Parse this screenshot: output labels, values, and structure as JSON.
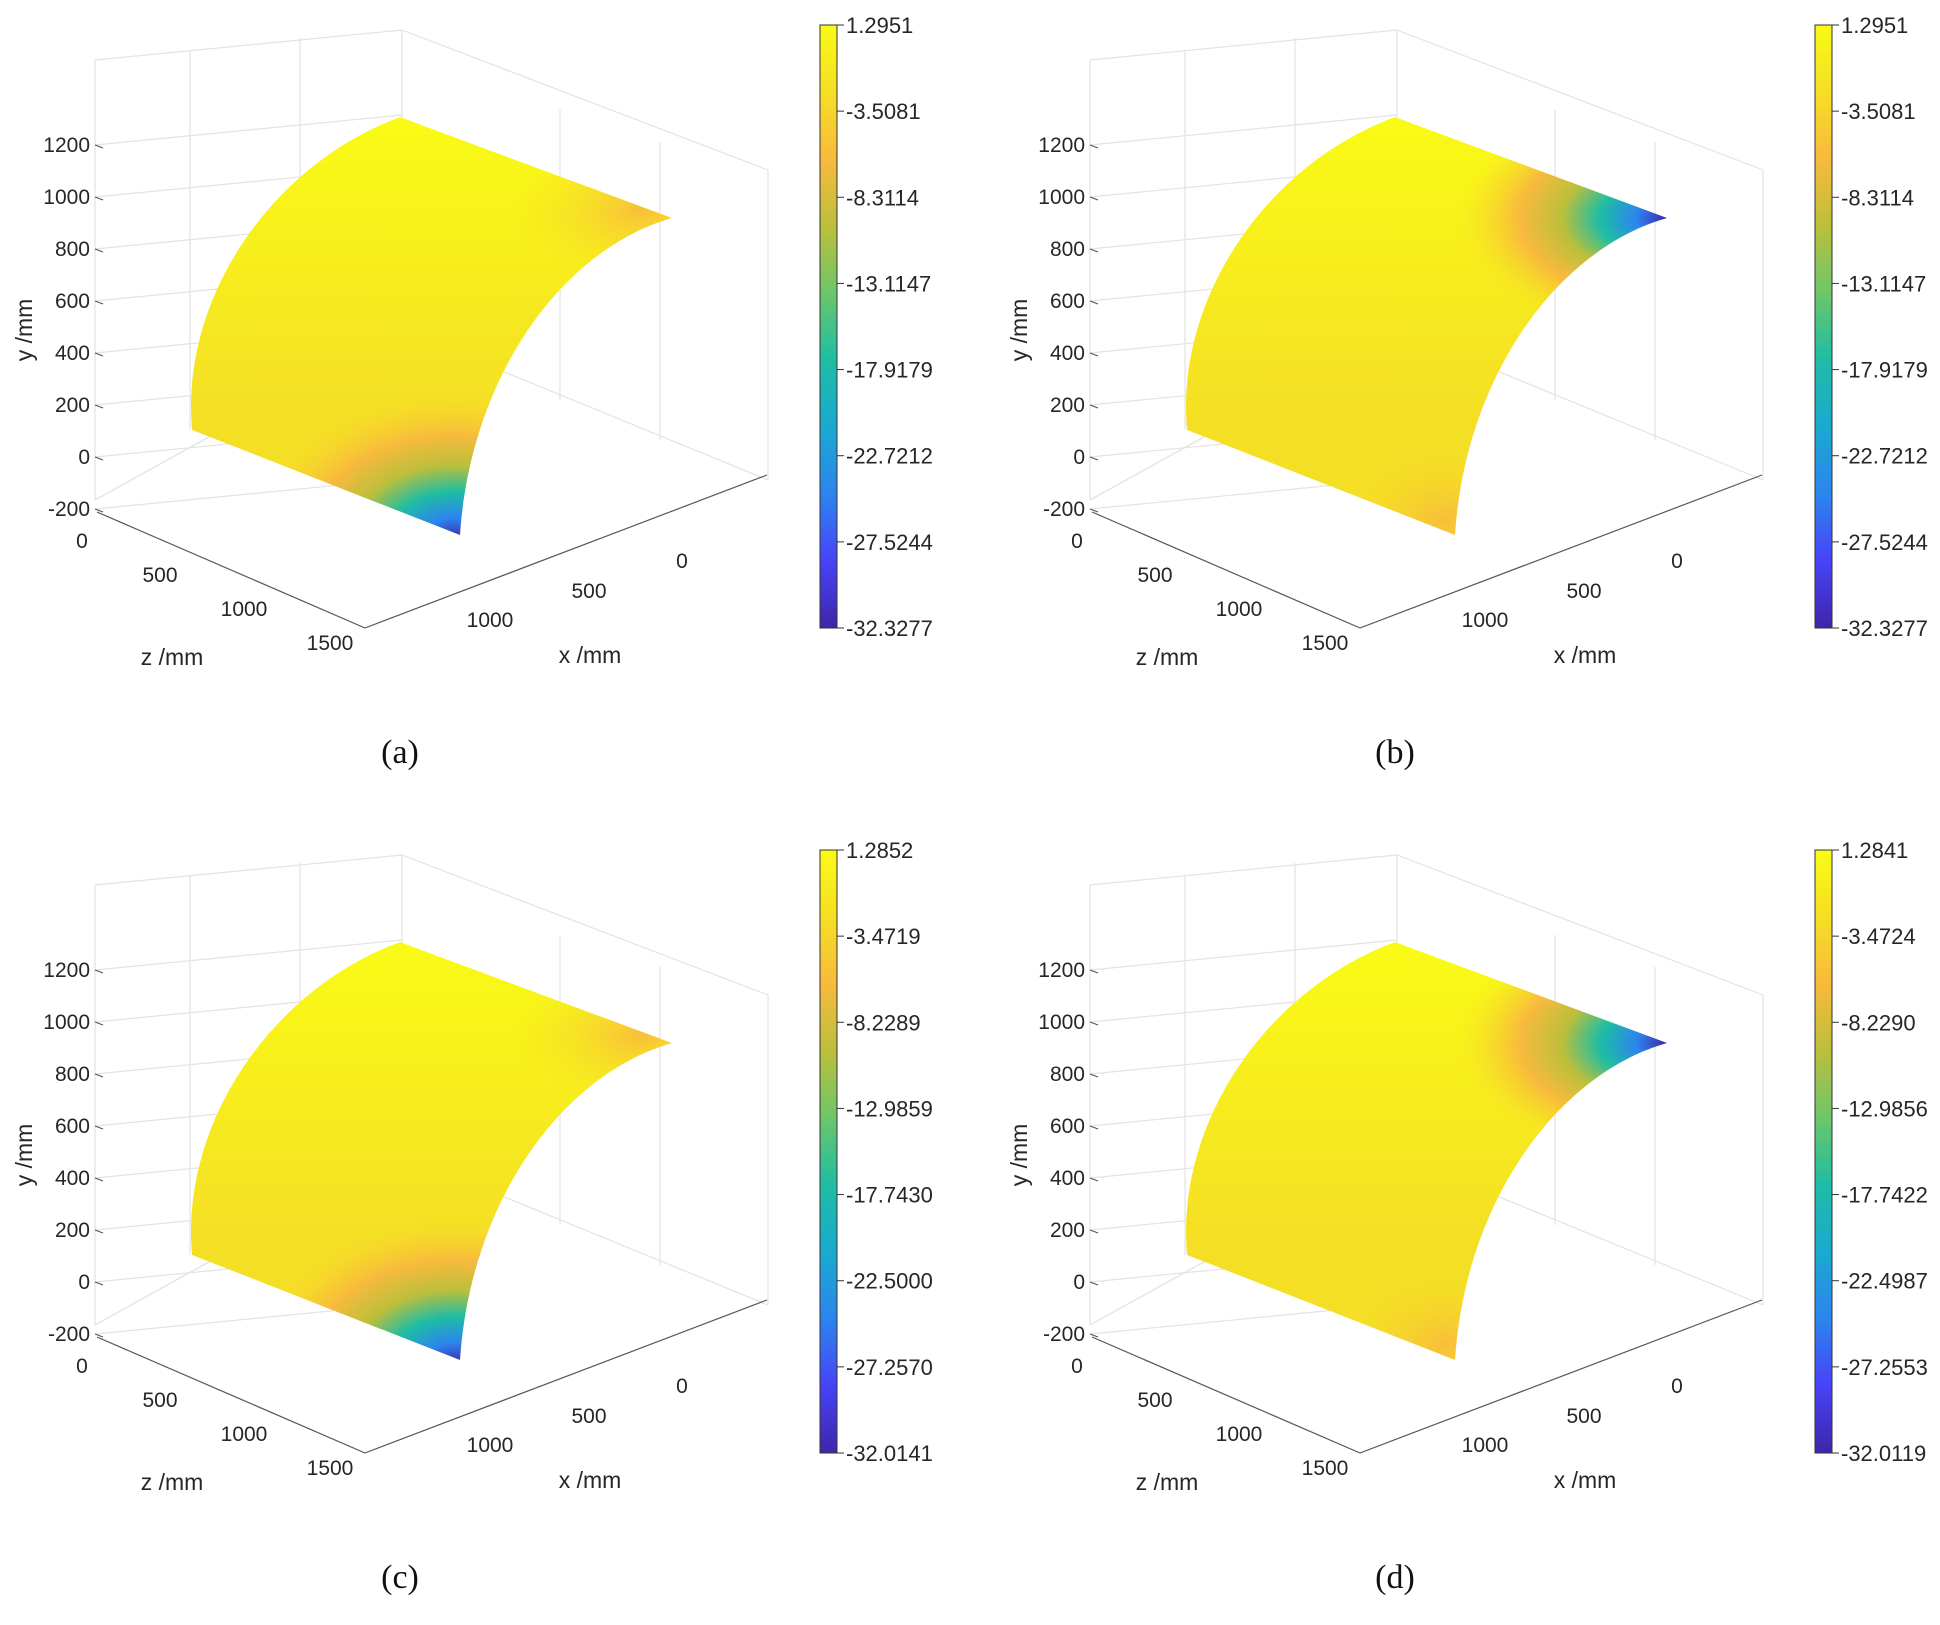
{
  "colormap": [
    "#3e26a8",
    "#4743f8",
    "#2c85ee",
    "#1aa9d0",
    "#1ebda4",
    "#6cc66a",
    "#bcbf3b",
    "#f8ba3d",
    "#f5df25",
    "#f9fb15"
  ],
  "chart_data": [
    {
      "type": "surface",
      "caption": "(a)",
      "xlabel": "x /mm",
      "ylabel": "y /mm",
      "zlabel": "z /mm",
      "x_ticks": [
        "0",
        "500",
        "1000"
      ],
      "y_ticks": [
        "1200",
        "1000",
        "800",
        "600",
        "400",
        "200",
        "0",
        "-200"
      ],
      "z_ticks": [
        "0",
        "500",
        "1000",
        "1500"
      ],
      "colorbar": {
        "ticks": [
          "1.2951",
          "-3.5081",
          "-8.3114",
          "-13.1147",
          "-17.9179",
          "-22.7212",
          "-27.5244",
          "-32.3277"
        ],
        "max": 1.2951,
        "min": -32.3277
      },
      "hotspot": {
        "location": "bottom-front edge (y≈0, z≈1500)",
        "value": -32.3277,
        "secondary": "top-front edge slight dip"
      }
    },
    {
      "type": "surface",
      "caption": "(b)",
      "xlabel": "x /mm",
      "ylabel": "y /mm",
      "zlabel": "z /mm",
      "x_ticks": [
        "0",
        "500",
        "1000"
      ],
      "y_ticks": [
        "1200",
        "1000",
        "800",
        "600",
        "400",
        "200",
        "0",
        "-200"
      ],
      "z_ticks": [
        "0",
        "500",
        "1000",
        "1500"
      ],
      "colorbar": {
        "ticks": [
          "1.2951",
          "-3.5081",
          "-8.3114",
          "-13.1147",
          "-17.9179",
          "-22.7212",
          "-27.5244",
          "-32.3277"
        ],
        "max": 1.2951,
        "min": -32.3277
      },
      "hotspot": {
        "location": "top-right edge (y≈1000, x≈1000)",
        "value": -32.3277,
        "secondary": "bottom-front corner slight dip"
      }
    },
    {
      "type": "surface",
      "caption": "(c)",
      "xlabel": "x /mm",
      "ylabel": "y /mm",
      "zlabel": "z /mm",
      "x_ticks": [
        "0",
        "500",
        "1000"
      ],
      "y_ticks": [
        "1200",
        "1000",
        "800",
        "600",
        "400",
        "200",
        "0",
        "-200"
      ],
      "z_ticks": [
        "0",
        "500",
        "1000",
        "1500"
      ],
      "colorbar": {
        "ticks": [
          "1.2852",
          "-3.4719",
          "-8.2289",
          "-12.9859",
          "-17.7430",
          "-22.5000",
          "-27.2570",
          "-32.0141"
        ],
        "max": 1.2852,
        "min": -32.0141
      },
      "hotspot": {
        "location": "bottom-front edge (y≈0, z≈1500)",
        "value": -32.0141,
        "secondary": "top-front edge slight dip"
      }
    },
    {
      "type": "surface",
      "caption": "(d)",
      "xlabel": "x /mm",
      "ylabel": "y /mm",
      "zlabel": "z /mm",
      "x_ticks": [
        "0",
        "500",
        "1000"
      ],
      "y_ticks": [
        "1200",
        "1000",
        "800",
        "600",
        "400",
        "200",
        "0",
        "-200"
      ],
      "z_ticks": [
        "0",
        "500",
        "1000",
        "1500"
      ],
      "colorbar": {
        "ticks": [
          "1.2841",
          "-3.4724",
          "-8.2290",
          "-12.9856",
          "-17.7422",
          "-22.4987",
          "-27.2553",
          "-32.0119"
        ],
        "max": 1.2841,
        "min": -32.0119
      },
      "hotspot": {
        "location": "top-right edge (y≈1000, x≈1000)",
        "value": -32.0119,
        "secondary": "bottom-front corner slight dip"
      }
    }
  ]
}
